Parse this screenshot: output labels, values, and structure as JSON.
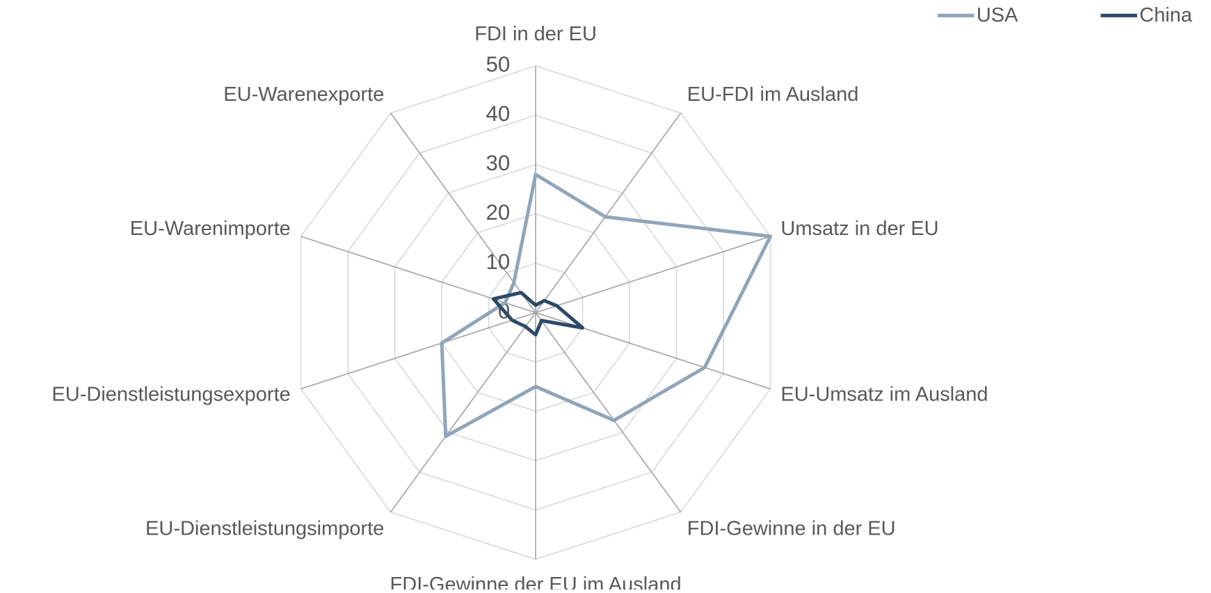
{
  "chart_data": {
    "type": "radar",
    "categories": [
      "FDI in der EU",
      "EU-FDI im Ausland",
      "Umsatz in der EU",
      "EU-Umsatz im Ausland",
      "FDI-Gewinne in der EU",
      "FDI-Gewinne der EU im Ausland",
      "EU-Dienstleistungsimporte",
      "EU-Dienstleistungsexporte",
      "EU-Warenimporte",
      "EU-Warenexporte"
    ],
    "series": [
      {
        "name": "USA",
        "color": "#8fa5bb",
        "values": [
          28,
          24,
          50,
          36,
          27,
          15,
          31,
          20,
          6.5,
          7.5
        ]
      },
      {
        "name": "China",
        "color": "#2c4a66",
        "values": [
          1.5,
          3,
          4.5,
          10,
          2,
          4.5,
          3.5,
          5,
          9,
          5
        ]
      }
    ],
    "ylim": [
      0,
      50
    ],
    "yticks": [
      0,
      10,
      20,
      30,
      40,
      50
    ],
    "grid": true,
    "legend": "top-right"
  }
}
